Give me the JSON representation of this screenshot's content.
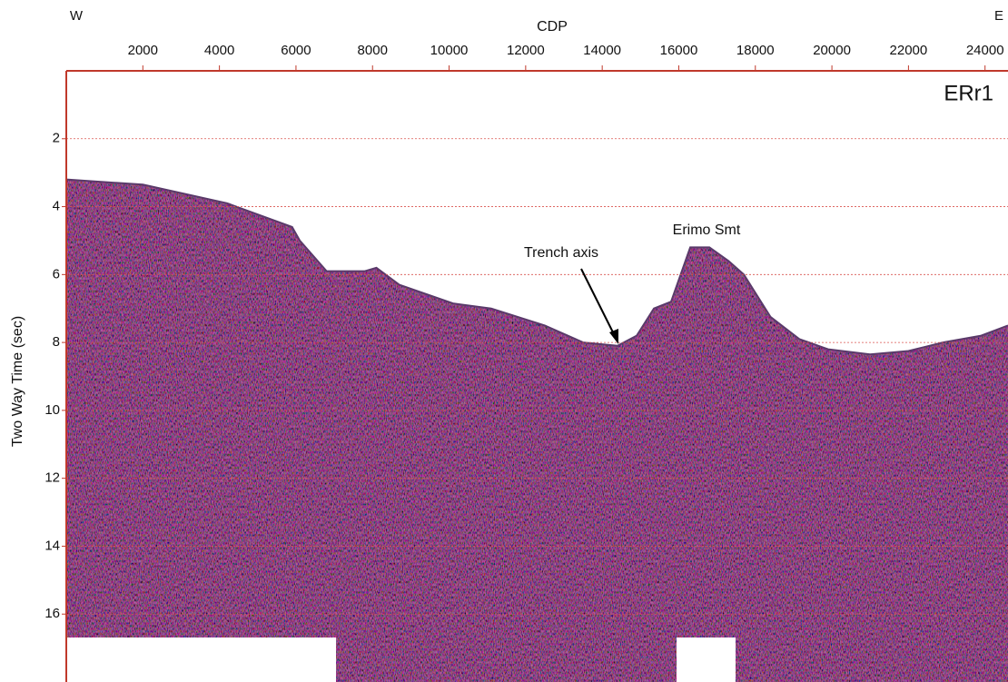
{
  "chart_data": {
    "type": "area",
    "title": "ERr1",
    "x_label": "CDP",
    "y_label": "Two Way Time (sec)",
    "annotations": {
      "west": "W",
      "east": "E",
      "trench": "Trench axis",
      "seamount": "Erimo Smt"
    },
    "x": [
      0,
      2000,
      4200,
      5900,
      6100,
      6800,
      7800,
      8100,
      8700,
      10100,
      11100,
      12500,
      13500,
      14400,
      14900,
      15350,
      15800,
      16300,
      16800,
      17300,
      17700,
      18400,
      19150,
      19900,
      21000,
      22000,
      22900,
      23900,
      24600
    ],
    "values": [
      3.2,
      3.35,
      3.9,
      4.6,
      5.0,
      5.9,
      5.9,
      5.8,
      6.3,
      6.85,
      7.0,
      7.5,
      8.0,
      8.1,
      7.8,
      7.0,
      6.8,
      5.2,
      5.2,
      5.6,
      6.0,
      7.25,
      7.9,
      8.2,
      8.35,
      8.25,
      8.0,
      7.8,
      7.5
    ],
    "color": "#b98aa3",
    "xlim": [
      0,
      24600
    ],
    "ylim": [
      18,
      0
    ],
    "xticks": [
      2000,
      4000,
      6000,
      8000,
      10000,
      12000,
      14000,
      16000,
      18000,
      20000,
      22000,
      24000
    ],
    "yticks": [
      2,
      4,
      6,
      8,
      10,
      12,
      14,
      16
    ],
    "grid": true,
    "grid_color": "#d9534f"
  }
}
